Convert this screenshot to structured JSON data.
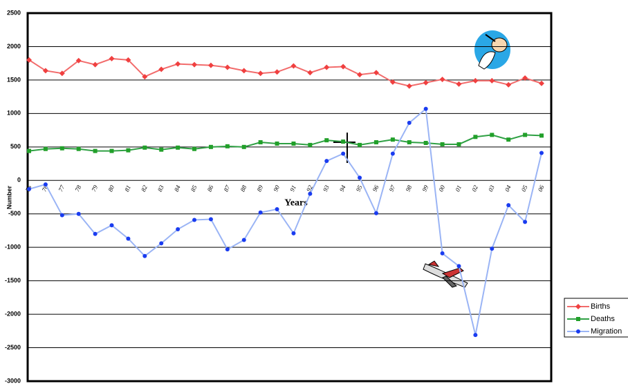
{
  "chart_data": {
    "type": "line",
    "x_label": "Years",
    "y_label": "Number",
    "categories": [
      "75",
      "76",
      "77",
      "78",
      "79",
      "80",
      "81",
      "82",
      "83",
      "84",
      "85",
      "86",
      "87",
      "88",
      "89",
      "90",
      "91",
      "92",
      "93",
      "94",
      "95",
      "96",
      "97",
      "98",
      "99",
      "00",
      "01",
      "02",
      "03",
      "04",
      "05",
      "06"
    ],
    "series": [
      {
        "name": "Births",
        "color": "#f26b6b",
        "marker": "diamond",
        "values": [
          1800,
          1640,
          1600,
          1790,
          1730,
          1820,
          1800,
          1550,
          1660,
          1740,
          1730,
          1720,
          1690,
          1640,
          1600,
          1620,
          1710,
          1610,
          1690,
          1700,
          1580,
          1610,
          1470,
          1410,
          1460,
          1510,
          1440,
          1490,
          1490,
          1430,
          1530,
          1450
        ]
      },
      {
        "name": "Deaths",
        "color": "#2ea043",
        "marker": "square",
        "values": [
          440,
          470,
          480,
          470,
          440,
          440,
          450,
          490,
          460,
          490,
          470,
          500,
          510,
          500,
          570,
          550,
          550,
          530,
          600,
          580,
          530,
          570,
          610,
          570,
          560,
          540,
          540,
          650,
          680,
          610,
          680,
          670
        ]
      },
      {
        "name": "Migration",
        "color": "#9ab4f5",
        "marker": "circle",
        "values": [
          -130,
          -60,
          -520,
          -500,
          -800,
          -670,
          -870,
          -1130,
          -940,
          -730,
          -590,
          -580,
          -1030,
          -890,
          -480,
          -430,
          -790,
          -200,
          290,
          400,
          40,
          -490,
          400,
          860,
          1070,
          -1090,
          -1280,
          -2310,
          -1020,
          -370,
          -620,
          410
        ]
      }
    ],
    "ylim": [
      -3000,
      2500
    ],
    "yticks": [
      -3000,
      -2500,
      -2000,
      -1500,
      -1000,
      -500,
      0,
      500,
      1000,
      1500,
      2000,
      2500
    ],
    "grid": true,
    "legend": "bottom-right"
  }
}
